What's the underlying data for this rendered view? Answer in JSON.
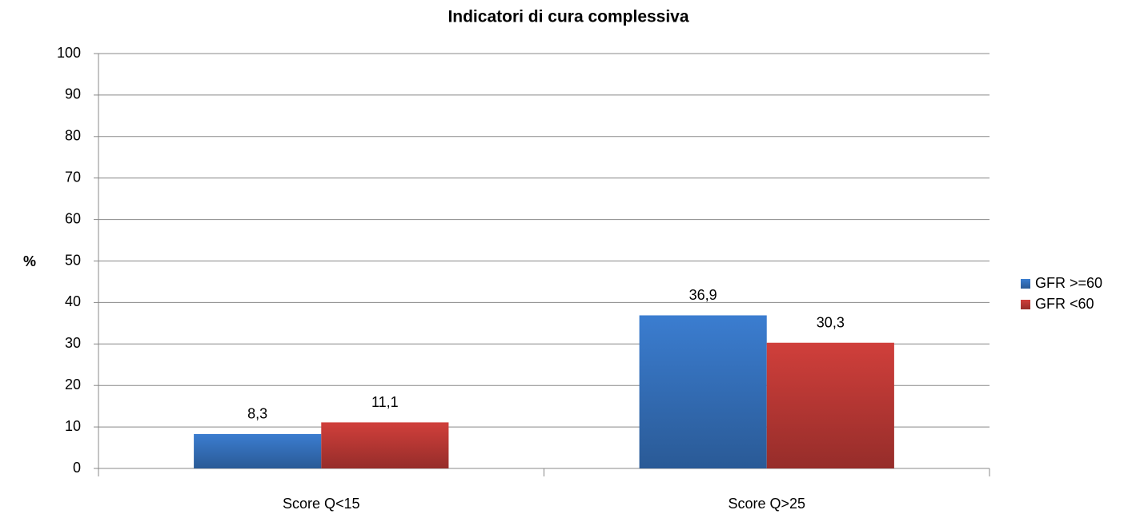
{
  "chart_data": {
    "type": "bar",
    "title": "Indicatori di cura complessiva",
    "y_label": "%",
    "categories": [
      "Score Q<15",
      "Score Q>25"
    ],
    "series": [
      {
        "name": "GFR >=60",
        "color": "#3b7dd0",
        "values": [
          8.3,
          36.9
        ],
        "value_labels": [
          "8,3",
          "36,9"
        ]
      },
      {
        "name": "GFR <60",
        "color": "#d03f3b",
        "values": [
          11.1,
          30.3
        ],
        "value_labels": [
          "11,1",
          "30,3"
        ]
      }
    ],
    "ylim": [
      0,
      100
    ],
    "yticks": [
      0,
      10,
      20,
      30,
      40,
      50,
      60,
      70,
      80,
      90,
      100
    ],
    "grid": true,
    "legend": "right"
  }
}
